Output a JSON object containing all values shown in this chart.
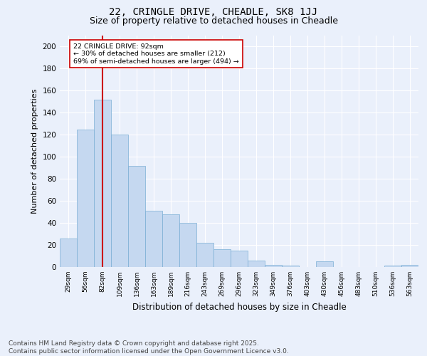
{
  "title1": "22, CRINGLE DRIVE, CHEADLE, SK8 1JJ",
  "title2": "Size of property relative to detached houses in Cheadle",
  "xlabel": "Distribution of detached houses by size in Cheadle",
  "ylabel": "Number of detached properties",
  "categories": [
    "29sqm",
    "56sqm",
    "82sqm",
    "109sqm",
    "136sqm",
    "163sqm",
    "189sqm",
    "216sqm",
    "243sqm",
    "269sqm",
    "296sqm",
    "323sqm",
    "349sqm",
    "376sqm",
    "403sqm",
    "430sqm",
    "456sqm",
    "483sqm",
    "510sqm",
    "536sqm",
    "563sqm"
  ],
  "values": [
    26,
    125,
    152,
    120,
    92,
    51,
    48,
    40,
    22,
    16,
    15,
    6,
    2,
    1,
    0,
    5,
    0,
    0,
    0,
    1,
    2
  ],
  "bar_color": "#c5d8f0",
  "bar_edge_color": "#7aaed4",
  "vline_x_index": 2,
  "vline_color": "#cc0000",
  "annotation_text": "22 CRINGLE DRIVE: 92sqm\n← 30% of detached houses are smaller (212)\n69% of semi-detached houses are larger (494) →",
  "annotation_box_color": "#ffffff",
  "annotation_box_edge": "#cc0000",
  "ylim": [
    0,
    210
  ],
  "yticks": [
    0,
    20,
    40,
    60,
    80,
    100,
    120,
    140,
    160,
    180,
    200
  ],
  "background_color": "#eaf0fb",
  "plot_bg_color": "#eaf0fb",
  "footer": "Contains HM Land Registry data © Crown copyright and database right 2025.\nContains public sector information licensed under the Open Government Licence v3.0.",
  "title_fontsize": 10,
  "subtitle_fontsize": 9,
  "footer_fontsize": 6.5
}
